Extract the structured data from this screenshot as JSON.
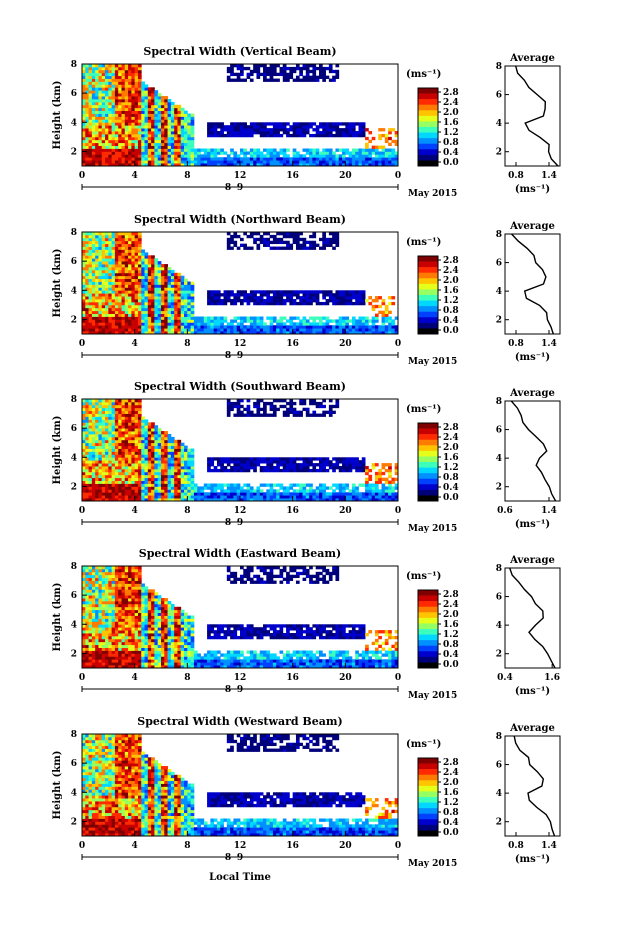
{
  "figure": {
    "xlabel": "Local Time",
    "date_label": "May 2015"
  },
  "colorbar": {
    "unit": "(ms⁻¹)",
    "ticks": [
      "2.8",
      "2.4",
      "2.0",
      "1.6",
      "1.2",
      "0.8",
      "0.4",
      "0.0"
    ],
    "colors": [
      "#7f0000",
      "#c80000",
      "#ff2a00",
      "#ff7a00",
      "#ffc400",
      "#e6ff1a",
      "#96ff62",
      "#3cffbc",
      "#00d8ff",
      "#0090ff",
      "#0040ff",
      "#0000cc",
      "#00007a",
      "#000000"
    ]
  },
  "chart_data": [
    {
      "type": "heatmap",
      "title": "Spectral Width (Vertical Beam)",
      "ylabel": "Height (km)",
      "xlim": [
        0,
        24
      ],
      "ylim": [
        1,
        8
      ],
      "x_ticks": [
        "0",
        "4",
        "8",
        "12",
        "16",
        "20",
        "0"
      ],
      "y_ticks": [
        "2",
        "4",
        "6",
        "8"
      ],
      "day_labels": [
        "8",
        "9"
      ],
      "colorbar_ticks": [
        "2.8",
        "2.4",
        "2.0",
        "1.6",
        "1.2",
        "0.8",
        "0.4",
        "0.0"
      ],
      "average": {
        "title": "Average",
        "xlabel": "(ms⁻¹)",
        "xlim": [
          0.6,
          1.6
        ],
        "x_ticks": [
          "0.8",
          "1.4"
        ],
        "y_ticks": [
          "2",
          "4",
          "6",
          "8"
        ],
        "profile": [
          [
            1.0,
            1.55
          ],
          [
            1.5,
            1.45
          ],
          [
            2.0,
            1.4
          ],
          [
            2.5,
            1.38
          ],
          [
            3.0,
            1.25
          ],
          [
            3.5,
            1.05
          ],
          [
            4.0,
            0.95
          ],
          [
            4.5,
            1.3
          ],
          [
            5.0,
            1.3
          ],
          [
            5.5,
            1.35
          ],
          [
            6.0,
            1.2
          ],
          [
            6.5,
            1.05
          ],
          [
            7.0,
            0.95
          ],
          [
            7.5,
            0.85
          ],
          [
            8.0,
            0.8
          ]
        ]
      }
    },
    {
      "type": "heatmap",
      "title": "Spectral Width (Northward Beam)",
      "ylabel": "Height (km)",
      "xlim": [
        0,
        24
      ],
      "ylim": [
        1,
        8
      ],
      "x_ticks": [
        "0",
        "4",
        "8",
        "12",
        "16",
        "20",
        "0"
      ],
      "y_ticks": [
        "2",
        "4",
        "6",
        "8"
      ],
      "day_labels": [
        "8",
        "9"
      ],
      "colorbar_ticks": [
        "2.8",
        "2.4",
        "2.0",
        "1.6",
        "1.2",
        "0.8",
        "0.4",
        "0.0"
      ],
      "average": {
        "title": "Average",
        "xlabel": "(ms⁻¹)",
        "xlim": [
          0.6,
          1.6
        ],
        "x_ticks": [
          "0.8",
          "1.4"
        ],
        "y_ticks": [
          "2",
          "4",
          "6",
          "8"
        ],
        "profile": [
          [
            1.0,
            1.5
          ],
          [
            1.5,
            1.45
          ],
          [
            2.0,
            1.4
          ],
          [
            2.5,
            1.35
          ],
          [
            3.0,
            1.2
          ],
          [
            3.5,
            1.0
          ],
          [
            4.0,
            0.95
          ],
          [
            4.5,
            1.3
          ],
          [
            5.0,
            1.35
          ],
          [
            5.5,
            1.3
          ],
          [
            6.0,
            1.15
          ],
          [
            6.5,
            1.1
          ],
          [
            7.0,
            1.0
          ],
          [
            7.5,
            0.85
          ],
          [
            8.0,
            0.75
          ]
        ]
      }
    },
    {
      "type": "heatmap",
      "title": "Spectral Width (Southward Beam)",
      "ylabel": "Height (km)",
      "xlim": [
        0,
        24
      ],
      "ylim": [
        1,
        8
      ],
      "x_ticks": [
        "0",
        "4",
        "8",
        "12",
        "16",
        "20",
        "0"
      ],
      "y_ticks": [
        "2",
        "4",
        "6",
        "8"
      ],
      "day_labels": [
        "8",
        "9"
      ],
      "colorbar_ticks": [
        "2.8",
        "2.4",
        "2.0",
        "1.6",
        "1.2",
        "0.8",
        "0.4",
        "0.0"
      ],
      "average": {
        "title": "Average",
        "xlabel": "(ms⁻¹)",
        "xlim": [
          0.6,
          1.6
        ],
        "x_ticks": [
          "0.6",
          "1.4"
        ],
        "y_ticks": [
          "2",
          "4",
          "6",
          "8"
        ],
        "profile": [
          [
            1.0,
            1.55
          ],
          [
            1.5,
            1.45
          ],
          [
            2.0,
            1.4
          ],
          [
            2.5,
            1.35
          ],
          [
            3.0,
            1.25
          ],
          [
            3.5,
            1.15
          ],
          [
            4.0,
            1.2
          ],
          [
            4.5,
            1.35
          ],
          [
            5.0,
            1.3
          ],
          [
            5.5,
            1.15
          ],
          [
            6.0,
            1.0
          ],
          [
            6.5,
            0.95
          ],
          [
            7.0,
            0.9
          ],
          [
            7.5,
            0.8
          ],
          [
            8.0,
            0.7
          ]
        ]
      }
    },
    {
      "type": "heatmap",
      "title": "Spectral Width (Eastward Beam)",
      "ylabel": "Height (km)",
      "xlim": [
        0,
        24
      ],
      "ylim": [
        1,
        8
      ],
      "x_ticks": [
        "0",
        "4",
        "8",
        "12",
        "16",
        "20",
        "0"
      ],
      "y_ticks": [
        "2",
        "4",
        "6",
        "8"
      ],
      "day_labels": [
        "8",
        "9"
      ],
      "colorbar_ticks": [
        "2.8",
        "2.4",
        "2.0",
        "1.6",
        "1.2",
        "0.8",
        "0.4",
        "0.0"
      ],
      "average": {
        "title": "Average",
        "xlabel": "(ms⁻¹)",
        "xlim": [
          0.4,
          1.8
        ],
        "x_ticks": [
          "0.4",
          "1.6"
        ],
        "y_ticks": [
          "2",
          "4",
          "6",
          "8"
        ],
        "profile": [
          [
            1.0,
            1.65
          ],
          [
            1.5,
            1.55
          ],
          [
            2.0,
            1.5
          ],
          [
            2.5,
            1.35
          ],
          [
            3.0,
            1.15
          ],
          [
            3.5,
            1.0
          ],
          [
            4.0,
            1.2
          ],
          [
            4.5,
            1.4
          ],
          [
            5.0,
            1.35
          ],
          [
            5.5,
            1.2
          ],
          [
            6.0,
            1.05
          ],
          [
            6.5,
            0.9
          ],
          [
            7.0,
            0.75
          ],
          [
            7.5,
            0.6
          ],
          [
            8.0,
            0.5
          ]
        ]
      }
    },
    {
      "type": "heatmap",
      "title": "Spectral Width (Westward Beam)",
      "ylabel": "Height (km)",
      "xlim": [
        0,
        24
      ],
      "ylim": [
        1,
        8
      ],
      "x_ticks": [
        "0",
        "4",
        "8",
        "12",
        "16",
        "20",
        "0"
      ],
      "y_ticks": [
        "2",
        "4",
        "6",
        "8"
      ],
      "day_labels": [
        "8",
        "9"
      ],
      "colorbar_ticks": [
        "2.8",
        "2.4",
        "2.0",
        "1.6",
        "1.2",
        "0.8",
        "0.4",
        "0.0"
      ],
      "average": {
        "title": "Average",
        "xlabel": "(ms⁻¹)",
        "xlim": [
          0.6,
          1.6
        ],
        "x_ticks": [
          "0.8",
          "1.4"
        ],
        "y_ticks": [
          "2",
          "4",
          "6",
          "8"
        ],
        "profile": [
          [
            1.0,
            1.5
          ],
          [
            1.5,
            1.45
          ],
          [
            2.0,
            1.4
          ],
          [
            2.5,
            1.35
          ],
          [
            3.0,
            1.2
          ],
          [
            3.5,
            1.05
          ],
          [
            4.0,
            1.0
          ],
          [
            4.5,
            1.3
          ],
          [
            5.0,
            1.3
          ],
          [
            5.5,
            1.2
          ],
          [
            6.0,
            1.05
          ],
          [
            6.5,
            1.0
          ],
          [
            7.0,
            0.9
          ],
          [
            7.5,
            0.8
          ],
          [
            8.0,
            0.75
          ]
        ]
      }
    }
  ]
}
